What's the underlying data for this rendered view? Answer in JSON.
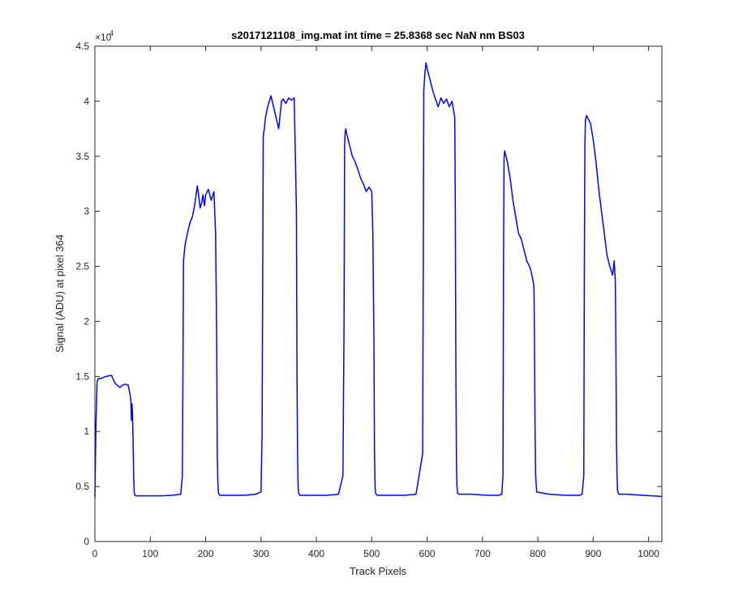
{
  "chart_data": {
    "type": "line",
    "title": "s2017121108_img.mat int time = 25.8368 sec  NaN nm BS03",
    "xlabel": "Track Pixels",
    "ylabel": "Signal (ADU) at pixel 364",
    "xlim": [
      0,
      1024
    ],
    "ylim": [
      0,
      45000
    ],
    "x_ticks": [
      0,
      100,
      200,
      300,
      400,
      500,
      600,
      700,
      800,
      900,
      1000
    ],
    "y_ticks": [
      0,
      5000,
      10000,
      15000,
      20000,
      25000,
      30000,
      35000,
      40000,
      45000
    ],
    "y_tick_labels": [
      "0",
      "0.5",
      "1",
      "1.5",
      "2",
      "2.5",
      "3",
      "3.5",
      "4",
      "4.5"
    ],
    "y_exponent_label": "×10",
    "y_exponent_power": "4",
    "grid": false,
    "line_color": "#0000ff",
    "series": [
      {
        "x": [
          0,
          2,
          4,
          6,
          10,
          15,
          20,
          30,
          35,
          40,
          45,
          50,
          55,
          60,
          63,
          65,
          66,
          67,
          68,
          69,
          70,
          71,
          72,
          75,
          80,
          100,
          120,
          140,
          155,
          158,
          159,
          160,
          161,
          163,
          165,
          168,
          172,
          176,
          180,
          185,
          188,
          190,
          193,
          195,
          198,
          200,
          205,
          210,
          215,
          218,
          220,
          221,
          222,
          223,
          224,
          226,
          230,
          250,
          270,
          290,
          300,
          302,
          304,
          306,
          308,
          312,
          318,
          325,
          332,
          337,
          340,
          345,
          350,
          355,
          360,
          364,
          365,
          366,
          367,
          368,
          370,
          380,
          400,
          420,
          440,
          448,
          450,
          451,
          452,
          453,
          455,
          460,
          465,
          470,
          475,
          480,
          485,
          490,
          495,
          500,
          502,
          504,
          505,
          506,
          507,
          508,
          510,
          530,
          560,
          580,
          592,
          594,
          596,
          598,
          600,
          605,
          610,
          615,
          620,
          625,
          630,
          635,
          640,
          645,
          650,
          651,
          652,
          653,
          654,
          655,
          658,
          680,
          710,
          730,
          735,
          737,
          738,
          739,
          740,
          745,
          750,
          755,
          760,
          765,
          770,
          775,
          780,
          785,
          788,
          790,
          792,
          793,
          794,
          795,
          796,
          798,
          820,
          850,
          875,
          880,
          883,
          884,
          885,
          886,
          888,
          895,
          900,
          905,
          910,
          915,
          920,
          925,
          930,
          935,
          938,
          940,
          941,
          942,
          943,
          944,
          946,
          960,
          990,
          1024
        ],
        "y": [
          4000,
          11000,
          14500,
          14800,
          14800,
          14900,
          15000,
          15100,
          14500,
          14200,
          14000,
          14200,
          14300,
          14200,
          13500,
          12800,
          11000,
          12500,
          11500,
          9000,
          6000,
          4500,
          4200,
          4150,
          4150,
          4150,
          4150,
          4200,
          4300,
          6000,
          15000,
          25500,
          26000,
          27000,
          27500,
          28200,
          29000,
          29500,
          30500,
          32300,
          31200,
          30300,
          30800,
          31500,
          30500,
          31500,
          32000,
          31000,
          31800,
          28000,
          18000,
          8000,
          5500,
          4500,
          4300,
          4200,
          4200,
          4200,
          4200,
          4300,
          4500,
          10000,
          36800,
          37500,
          38500,
          39500,
          40500,
          39000,
          37500,
          40000,
          40200,
          39800,
          40300,
          40100,
          40300,
          30000,
          15000,
          8000,
          5000,
          4400,
          4200,
          4200,
          4200,
          4200,
          4300,
          6000,
          20000,
          36000,
          37200,
          37500,
          37000,
          36000,
          35000,
          34500,
          33800,
          33000,
          32500,
          31800,
          32200,
          31800,
          28000,
          18000,
          8000,
          5000,
          4400,
          4300,
          4200,
          4200,
          4200,
          4300,
          8000,
          41000,
          42500,
          43500,
          43000,
          42000,
          41000,
          40200,
          39500,
          40300,
          39800,
          40200,
          39500,
          40000,
          38500,
          30000,
          15000,
          7000,
          5000,
          4400,
          4300,
          4300,
          4200,
          4200,
          4300,
          6000,
          25000,
          34800,
          35500,
          34500,
          33000,
          31000,
          29500,
          28000,
          27500,
          26500,
          25500,
          25000,
          24500,
          24000,
          23500,
          23000,
          18000,
          10000,
          6000,
          4500,
          4300,
          4200,
          4200,
          4300,
          6000,
          25000,
          36000,
          38300,
          38700,
          38000,
          36500,
          34500,
          32000,
          30000,
          28000,
          26000,
          25000,
          24200,
          25500,
          23500,
          18000,
          9000,
          6000,
          4600,
          4300,
          4300,
          4200,
          4100
        ]
      }
    ]
  }
}
